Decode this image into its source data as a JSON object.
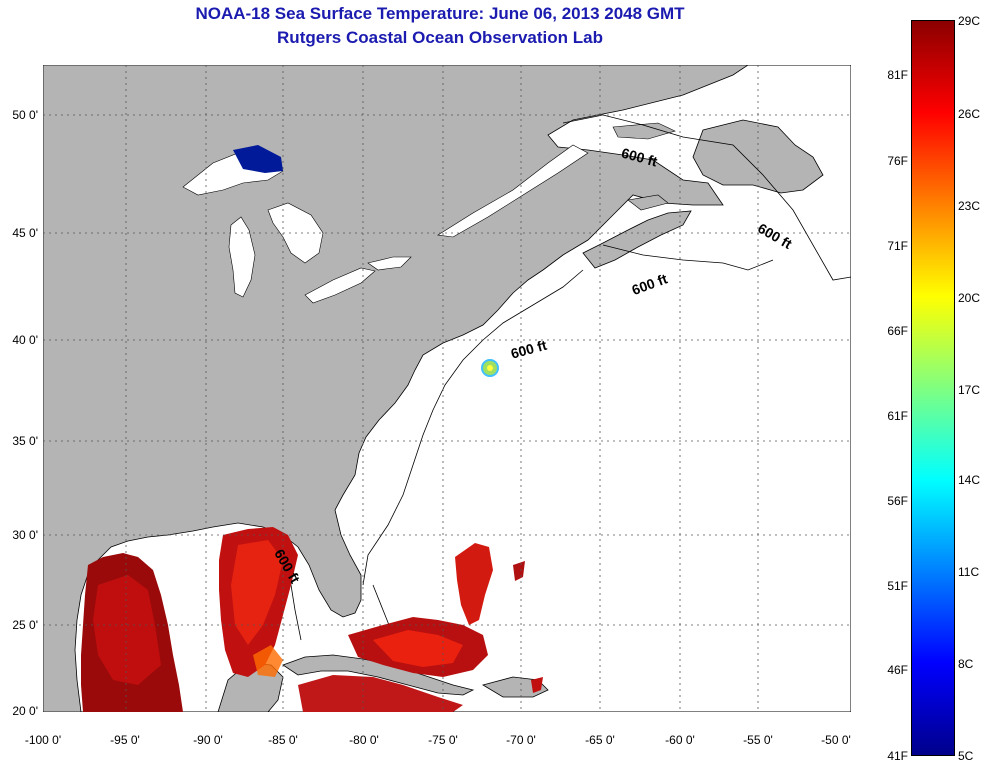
{
  "title": {
    "line1": "NOAA-18 Sea Surface Temperature:  June 06, 2013 2048 GMT",
    "line2": "Rutgers Coastal Ocean Observation Lab"
  },
  "axes": {
    "lat_labels": [
      "50 0'",
      "45 0'",
      "40 0'",
      "35 0'",
      "30 0'",
      "25 0'",
      "20 0'"
    ],
    "lon_labels": [
      "-100 0'",
      "-95 0'",
      "-90 0'",
      "-85 0'",
      "-80 0'",
      "-75 0'",
      "-70 0'",
      "-65 0'",
      "-60 0'",
      "-55 0'",
      "-50 0'"
    ]
  },
  "contour_label": "600 ft",
  "colorbar": {
    "f_labels": [
      "81F",
      "76F",
      "71F",
      "66F",
      "61F",
      "56F",
      "51F",
      "46F",
      "41F"
    ],
    "c_labels": [
      "29C",
      "26C",
      "23C",
      "20C",
      "17C",
      "14C",
      "11C",
      "8C",
      "5C"
    ],
    "colors": [
      "#8b0000",
      "#ff0000",
      "#ff8000",
      "#ffff00",
      "#80ff80",
      "#00ffff",
      "#0080ff",
      "#0000ff",
      "#00008b"
    ]
  },
  "colors": {
    "land": "#b4b4b4",
    "ocean": "#ffffff",
    "title": "#1b1bb0",
    "lake_cold": "#001a99",
    "sst_hot": "#b00000"
  }
}
